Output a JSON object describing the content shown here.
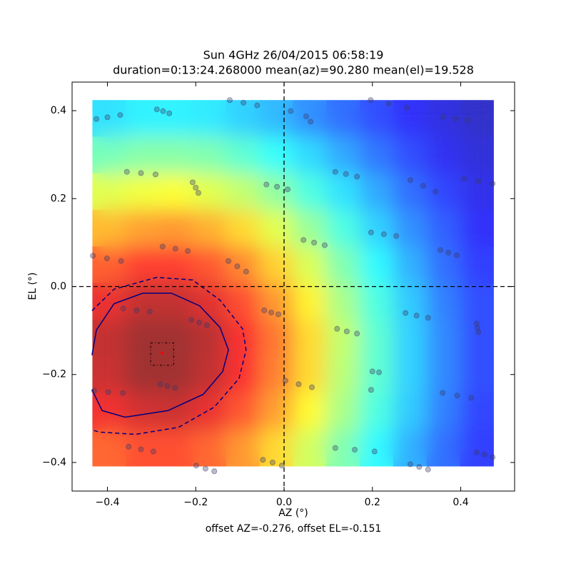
{
  "chart_data": {
    "type": "scatter",
    "title": "Sun 4GHz 26/04/2015 06:58:19",
    "subtitle": "duration=0:13:24.268000 mean(az)=90.280 mean(el)=19.528",
    "x_label": "AZ (°)",
    "y_label": "EL (°)",
    "note": "offset AZ=-0.276, offset EL=-0.151",
    "xlim": [
      -0.48,
      0.522
    ],
    "ylim": [
      -0.465,
      0.465
    ],
    "xticks": [
      {
        "value": -0.4,
        "label": "−0.4"
      },
      {
        "value": -0.2,
        "label": "−0.2"
      },
      {
        "value": 0,
        "label": "0.0"
      },
      0.2,
      0.4
    ],
    "yticks": [
      {
        "value": -0.4,
        "label": "−0.4"
      },
      {
        "value": -0.2,
        "label": "−0.2"
      },
      {
        "value": 0,
        "label": "0.0"
      },
      0.2,
      0.4
    ],
    "heatmap": {
      "colormap": "jet",
      "alpha": 0.8,
      "clim": [
        0,
        1
      ],
      "extent": [
        -0.434,
        0.474,
        -0.408,
        0.424
      ],
      "z": [
        [
          0.34,
          0.36,
          0.36,
          0.35,
          0.32,
          0.29,
          0.24,
          0.2,
          0.16,
          0.12,
          0.09,
          0.06
        ],
        [
          0.46,
          0.48,
          0.48,
          0.47,
          0.43,
          0.38,
          0.33,
          0.27,
          0.21,
          0.16,
          0.11,
          0.08
        ],
        [
          0.59,
          0.61,
          0.62,
          0.59,
          0.55,
          0.49,
          0.41,
          0.34,
          0.27,
          0.2,
          0.15,
          0.1
        ],
        [
          0.71,
          0.74,
          0.75,
          0.72,
          0.67,
          0.59,
          0.5,
          0.41,
          0.32,
          0.24,
          0.18,
          0.12
        ],
        [
          0.82,
          0.86,
          0.86,
          0.83,
          0.77,
          0.68,
          0.58,
          0.47,
          0.37,
          0.28,
          0.2,
          0.14
        ],
        [
          0.9,
          0.95,
          0.95,
          0.91,
          0.84,
          0.75,
          0.64,
          0.52,
          0.41,
          0.31,
          0.22,
          0.16
        ],
        [
          0.95,
          0.99,
          0.99,
          0.96,
          0.88,
          0.79,
          0.67,
          0.55,
          0.43,
          0.32,
          0.23,
          0.16
        ],
        [
          0.94,
          0.99,
          0.99,
          0.95,
          0.88,
          0.78,
          0.67,
          0.54,
          0.43,
          0.32,
          0.23,
          0.16
        ],
        [
          0.89,
          0.93,
          0.94,
          0.9,
          0.83,
          0.74,
          0.63,
          0.52,
          0.41,
          0.31,
          0.22,
          0.15
        ],
        [
          0.81,
          0.84,
          0.84,
          0.81,
          0.75,
          0.67,
          0.57,
          0.47,
          0.37,
          0.28,
          0.2,
          0.14
        ]
      ]
    },
    "contours": [
      {
        "style": "solid",
        "color": "#00007f",
        "x": [
          -0.435,
          -0.425,
          -0.385,
          -0.32,
          -0.255,
          -0.191,
          -0.145,
          -0.126,
          -0.139,
          -0.183,
          -0.263,
          -0.36,
          -0.412,
          -0.435
        ],
        "y": [
          -0.156,
          -0.099,
          -0.039,
          -0.015,
          -0.015,
          -0.044,
          -0.093,
          -0.144,
          -0.193,
          -0.245,
          -0.282,
          -0.297,
          -0.282,
          -0.234
        ]
      },
      {
        "style": "dashed",
        "color": "#00007f",
        "x": [
          -0.435,
          -0.385,
          -0.288,
          -0.207,
          -0.145,
          -0.094,
          -0.086,
          -0.102,
          -0.158,
          -0.239,
          -0.336,
          -0.417,
          -0.435
        ],
        "y": [
          -0.055,
          -0.006,
          0.021,
          0.015,
          -0.031,
          -0.096,
          -0.144,
          -0.209,
          -0.274,
          -0.32,
          -0.336,
          -0.331,
          -0.326
        ]
      }
    ],
    "hlines": [
      0
    ],
    "vlines": [
      0
    ],
    "points": {
      "color": "#3a3a66",
      "x": [
        -0.425,
        -0.4,
        -0.371,
        -0.288,
        -0.274,
        -0.26,
        -0.123,
        -0.092,
        -0.061,
        0.015,
        0.05,
        0.06,
        0.196,
        0.237,
        0.278,
        0.36,
        0.388,
        0.415,
        -0.356,
        -0.324,
        -0.291,
        -0.207,
        -0.2,
        -0.194,
        -0.04,
        -0.016,
        0.008,
        0.116,
        0.14,
        0.165,
        0.286,
        0.315,
        0.343,
        0.407,
        0.44,
        0.472,
        -0.433,
        -0.401,
        -0.369,
        -0.275,
        -0.246,
        -0.218,
        -0.126,
        -0.106,
        -0.086,
        0.044,
        0.068,
        0.092,
        0.197,
        0.226,
        0.254,
        0.354,
        0.372,
        0.391,
        -0.364,
        -0.334,
        -0.304,
        -0.21,
        -0.192,
        -0.175,
        -0.045,
        -0.029,
        -0.013,
        0.12,
        0.142,
        0.165,
        0.275,
        0.3,
        0.326,
        0.436,
        0.438,
        0.44,
        -0.43,
        -0.398,
        -0.365,
        -0.28,
        -0.264,
        -0.247,
        0.003,
        0.033,
        0.063,
        0.2,
        0.215,
        0.197,
        0.359,
        0.392,
        0.424,
        -0.352,
        -0.324,
        -0.296,
        -0.199,
        -0.178,
        -0.158,
        -0.048,
        -0.026,
        -0.005,
        0.116,
        0.16,
        0.205,
        0.286,
        0.306,
        0.326,
        0.436,
        0.454,
        0.472
      ],
      "y": [
        0.381,
        0.385,
        0.39,
        0.403,
        0.399,
        0.394,
        0.424,
        0.418,
        0.412,
        0.399,
        0.387,
        0.375,
        0.424,
        0.416,
        0.407,
        0.386,
        0.382,
        0.378,
        0.261,
        0.258,
        0.255,
        0.237,
        0.225,
        0.213,
        0.232,
        0.227,
        0.221,
        0.261,
        0.256,
        0.25,
        0.242,
        0.229,
        0.216,
        0.245,
        0.24,
        0.234,
        0.07,
        0.064,
        0.058,
        0.091,
        0.086,
        0.081,
        0.058,
        0.046,
        0.034,
        0.106,
        0.1,
        0.094,
        0.123,
        0.119,
        0.115,
        0.083,
        0.077,
        0.071,
        -0.05,
        -0.054,
        -0.057,
        -0.076,
        -0.082,
        -0.088,
        -0.054,
        -0.059,
        -0.063,
        -0.096,
        -0.102,
        -0.107,
        -0.06,
        -0.066,
        -0.071,
        -0.084,
        -0.094,
        -0.104,
        -0.237,
        -0.24,
        -0.242,
        -0.222,
        -0.226,
        -0.23,
        -0.214,
        -0.222,
        -0.229,
        -0.193,
        -0.195,
        -0.235,
        -0.242,
        -0.248,
        -0.253,
        -0.364,
        -0.37,
        -0.375,
        -0.407,
        -0.414,
        -0.42,
        -0.394,
        -0.4,
        -0.407,
        -0.367,
        -0.371,
        -0.375,
        -0.404,
        -0.41,
        -0.416,
        -0.377,
        -0.382,
        -0.388
      ]
    },
    "offset": {
      "x": -0.276,
      "y": -0.151,
      "color": "#ff0000"
    },
    "box": {
      "x": [
        -0.302,
        -0.25
      ],
      "y": [
        -0.179,
        -0.128
      ]
    }
  }
}
